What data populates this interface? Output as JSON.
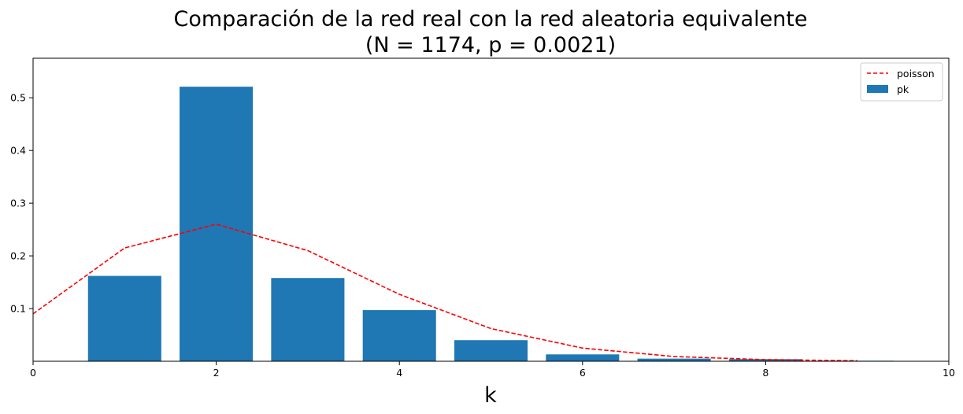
{
  "chart_data": {
    "type": "bar",
    "title_line1": "Comparación de la red real con la red aleatoria equivalente",
    "title_line2": "(N = 1174, p = 0.0021)",
    "xlabel": "k",
    "ylabel": "",
    "xlim": [
      0,
      10
    ],
    "ylim": [
      0,
      0.575
    ],
    "x_ticks": [
      0,
      2,
      4,
      6,
      8,
      10
    ],
    "y_ticks": [
      0.1,
      0.2,
      0.3,
      0.4,
      0.5
    ],
    "grid": false,
    "legend_position": "top-right",
    "bars": {
      "name": "pk",
      "color": "#1f77b4",
      "x": [
        1,
        2,
        3,
        4,
        5,
        6,
        7,
        8,
        9
      ],
      "values": [
        0.162,
        0.521,
        0.158,
        0.097,
        0.04,
        0.013,
        0.005,
        0.004,
        0.001
      ]
    },
    "line": {
      "name": "poisson",
      "color": "#ff0000",
      "style": "dashed",
      "x": [
        0,
        1,
        2,
        3,
        4,
        5,
        6,
        7,
        8,
        9
      ],
      "values": [
        0.09,
        0.215,
        0.26,
        0.21,
        0.127,
        0.062,
        0.025,
        0.009,
        0.003,
        0.001
      ]
    }
  }
}
